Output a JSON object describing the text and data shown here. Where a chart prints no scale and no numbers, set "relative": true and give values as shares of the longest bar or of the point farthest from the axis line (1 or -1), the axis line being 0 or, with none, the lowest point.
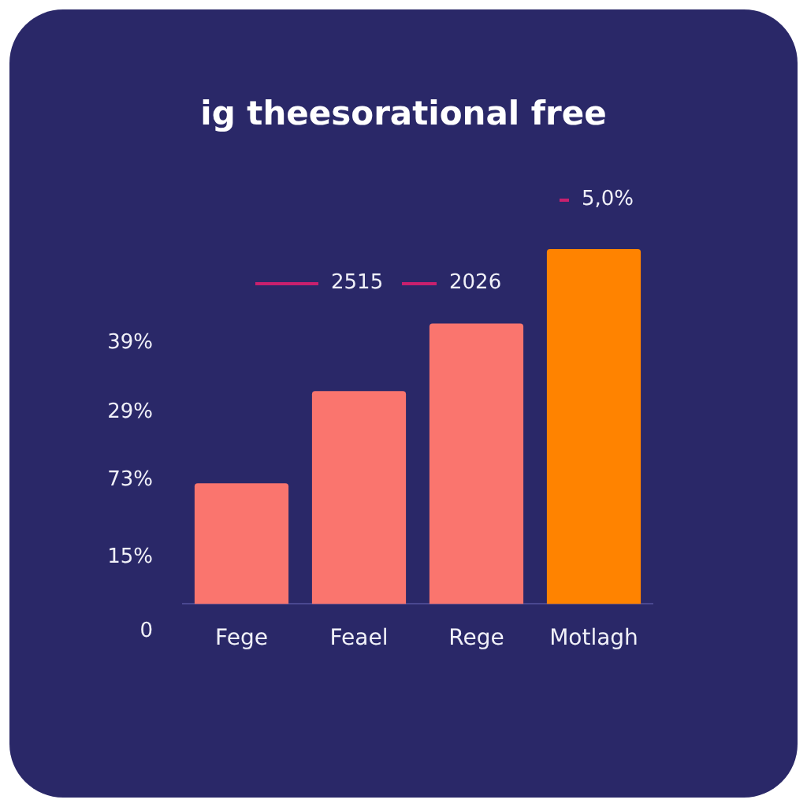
{
  "chart_data": {
    "type": "bar",
    "title": "ig theesorational free",
    "categories": [
      "Fege",
      "Feael",
      "Rege",
      "Motlagh"
    ],
    "values": [
      0.34,
      0.6,
      0.79,
      1
    ],
    "colors": [
      "#fa756e",
      "#fa756e",
      "#fa756e",
      "#ff8300"
    ],
    "relative": true,
    "grid": false,
    "annotations": [
      "5,0%",
      "2515",
      "2026",
      "39%",
      "29%",
      "73%",
      "15%",
      "0"
    ]
  }
}
